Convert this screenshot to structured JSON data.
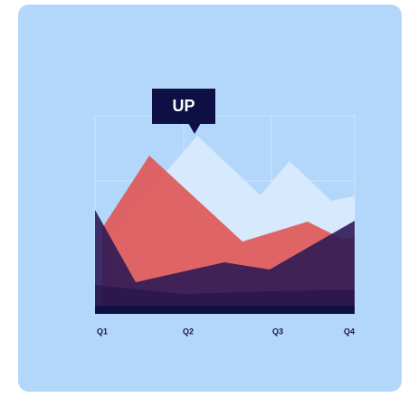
{
  "badge": "UP",
  "labels": [
    "Q1",
    "Q2",
    "Q3",
    "Q4"
  ]
}
